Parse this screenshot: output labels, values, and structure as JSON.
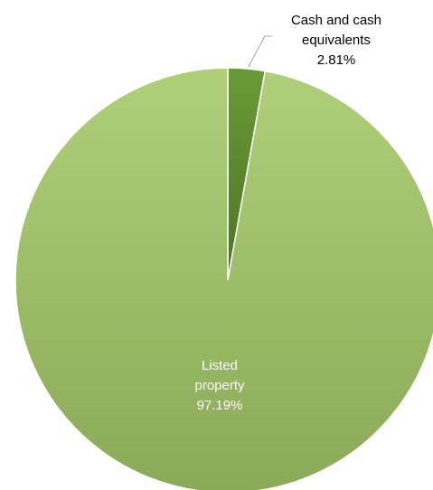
{
  "chart_data": {
    "type": "pie",
    "title": "",
    "slices": [
      {
        "label_lines": [
          "Cash and cash",
          "equivalents"
        ],
        "value": 2.81,
        "value_label": "2.81%",
        "color": "#5f8a2c"
      },
      {
        "label_lines": [
          "Listed",
          "property"
        ],
        "value": 97.19,
        "value_label": "97.19%",
        "color": "#a3c46c"
      }
    ],
    "legend": "none"
  }
}
